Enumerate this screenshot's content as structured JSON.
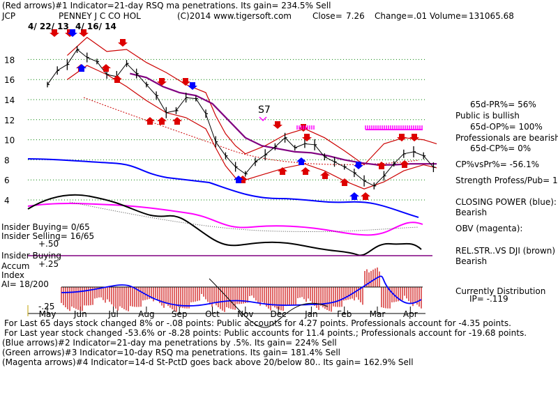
{
  "header": {
    "line1": "(Red arrows)#1 Indicator=21-day RSQ ma penetrations. Its gain= 234.5% Sell",
    "ticker": "JCP",
    "company": "PENNEY J C CO HOL",
    "copyright": "(C)2014 www.tigersoft.com",
    "close_label": "Close=",
    "close_value": "7.26",
    "change_label": "Change=",
    "change_value": ".01",
    "volume_label": "Volume=",
    "volume_value": "131065.68",
    "date_start": "4/ 22/ 13",
    "date_end": "4/ 16/ 14",
    "s7_marker": "S7"
  },
  "right_panel": {
    "pr": "65d-PR%= 56%",
    "public_status": "Public is bullish",
    "op": "65d-OP%= 100%",
    "professionals_status": "Professionals are bearish",
    "cp": "65d-CP%= 0%",
    "cpvspr": "CP%vsPr%= -56.1%",
    "strength": "Strength Profess/Pub= 1",
    "closing_power_label": "CLOSING POWER (blue):",
    "closing_power_value": "Bearish",
    "obv_label": "OBV (magenta):",
    "relstr_label": "REL.STR..VS DJI (brown)",
    "relstr_value": "Bearish",
    "distribution": "Currently Distribution",
    "ip": "IP= -.119"
  },
  "insider": {
    "buying": "Insider Buying= 0/65",
    "selling": "Insider Selling= 16/65",
    "accum_label": "Insider Buying",
    "accum_index_1": "Accum",
    "accum_index_2": "Index",
    "ai": "AI= 18/200",
    "tick_p50": "+.50",
    "tick_p25": "+.25",
    "tick_m25": "-.25"
  },
  "footer": {
    "line1": "For Last 65 days stock changed  8% or -.08 points:  Public accounts for  4.27 points.   Professionals account for -4.35 points.",
    "line2": "For Last year stock changed -53.6% or -8.28 points:  Public accounts for  11.4 points.;  Professionals account for -19.68 points.",
    "line3": "(Blue arrows)#2 Indicator=21-day ma penetrations by .5%. Its gain= 224% Sell",
    "line4": "(Green arrows)#3 Indicator=10-day RSQ ma penetrations. Its gain= 181.4% Sell",
    "line5": "(Magenta arrows)#4 Indicator=14-d St-PctD goes back above 20/below 80.. Its gain= 162.9% Sell"
  },
  "colors": {
    "bands": "#cc0000",
    "ma_purple": "#800080",
    "closing_power": "#0000ff",
    "obv": "#ff00ff",
    "relstr": "#000000",
    "grid": "#008000",
    "accum_bars": "#cc0000",
    "accum_line": "#0000ff",
    "accum_hline": "#800080"
  },
  "chart_data": {
    "type": "line",
    "title": "PENNEY J C CO HOL",
    "x_ticks": [
      "May",
      "Jun",
      "Jul",
      "Aug",
      "Sep",
      "Oct",
      "Nov",
      "Dec",
      "Jan",
      "Feb",
      "Mar",
      "Apr"
    ],
    "y_ticks": [
      4,
      6,
      8,
      10,
      12,
      14,
      16,
      18
    ],
    "ylim": [
      4,
      20
    ],
    "grid": true,
    "series": [
      {
        "key": "price",
        "x": [
          0,
          0.3,
          0.6,
          0.9,
          1.2,
          1.5,
          1.8,
          2.1,
          2.4,
          2.7,
          3.0,
          3.3,
          3.6,
          3.9,
          4.2,
          4.5,
          4.8,
          5.1,
          5.4,
          5.7,
          6.0,
          6.3,
          6.6,
          6.9,
          7.2,
          7.5,
          7.8,
          8.1,
          8.4,
          8.7,
          9.0,
          9.3,
          9.6,
          9.9,
          10.2,
          10.5,
          10.8,
          11.1,
          11.4,
          11.7
        ],
        "values": [
          15.5,
          16.9,
          17.5,
          19.0,
          18.2,
          17.8,
          16.5,
          16.3,
          17.6,
          16.6,
          15.5,
          14.4,
          12.7,
          12.9,
          14.2,
          14.1,
          12.6,
          9.8,
          8.4,
          7.3,
          6.6,
          7.8,
          8.5,
          9.3,
          10.2,
          9.2,
          9.6,
          9.5,
          8.3,
          7.8,
          7.3,
          6.7,
          5.9,
          5.4,
          6.4,
          7.6,
          8.6,
          8.8,
          8.4,
          7.26
        ]
      },
      {
        "key": "ma",
        "x": [
          2.5,
          3.0,
          3.5,
          4.0,
          4.5,
          5.0,
          5.5,
          6.0,
          6.5,
          7.0,
          7.5,
          8.0,
          8.5,
          9.0,
          9.5,
          10.0,
          10.5,
          11.0,
          11.5,
          11.8
        ],
        "values": [
          16.6,
          16.2,
          15.3,
          14.7,
          14.4,
          13.6,
          11.9,
          10.2,
          9.4,
          9.1,
          8.8,
          8.7,
          8.4,
          8.0,
          7.7,
          7.5,
          7.5,
          7.6,
          7.6,
          7.6
        ]
      },
      {
        "key": "upper_band",
        "x": [
          0.6,
          1.2,
          1.8,
          2.4,
          3.0,
          3.6,
          4.2,
          4.8,
          5.1,
          5.4,
          5.7,
          6.0,
          6.6,
          7.2,
          7.8,
          8.4,
          9.0,
          9.6,
          10.2,
          10.8,
          11.4,
          11.8
        ],
        "values": [
          18.4,
          20.2,
          18.8,
          19.0,
          17.7,
          16.7,
          15.5,
          14.7,
          12.4,
          10.6,
          9.4,
          8.6,
          9.4,
          10.5,
          11.1,
          10.2,
          8.9,
          7.5,
          9.6,
          10.2,
          10.0,
          9.6
        ]
      },
      {
        "key": "lower_band",
        "x": [
          0.6,
          1.2,
          1.8,
          2.4,
          3.0,
          3.6,
          4.2,
          4.8,
          5.1,
          5.4,
          5.7,
          6.0,
          6.6,
          7.2,
          7.8,
          8.4,
          9.0,
          9.6,
          10.2,
          10.8,
          11.4,
          11.8
        ],
        "values": [
          16.0,
          17.4,
          16.5,
          15.3,
          13.9,
          12.7,
          12.2,
          11.1,
          9.2,
          7.4,
          6.2,
          6.0,
          6.6,
          7.2,
          7.6,
          6.9,
          5.9,
          5.1,
          5.8,
          6.9,
          7.5,
          7.2
        ]
      }
    ]
  }
}
